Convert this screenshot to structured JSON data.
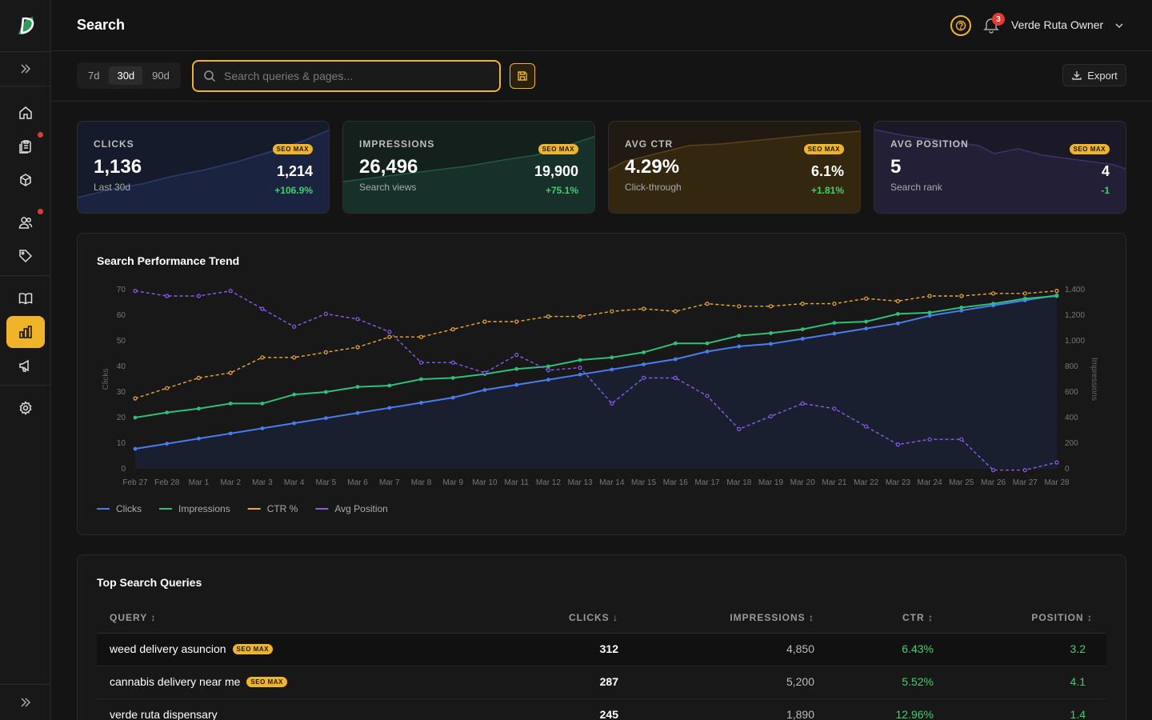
{
  "header": {
    "title": "Search",
    "notification_count": "3",
    "user_name": "Verde Ruta Owner"
  },
  "toolbar": {
    "ranges": [
      "7d",
      "30d",
      "90d"
    ],
    "selected_range": "30d",
    "search_placeholder": "Search queries & pages...",
    "export_label": "Export"
  },
  "cards": [
    {
      "label": "CLICKS",
      "value": "1,136",
      "sub": "Last 30d",
      "pill": "SEO MAX",
      "max": "1,214",
      "change": "+106.9%",
      "color": "#3b6fe0"
    },
    {
      "label": "IMPRESSIONS",
      "value": "26,496",
      "sub": "Search views",
      "pill": "SEO MAX",
      "max": "19,900",
      "change": "+75.1%",
      "color": "#27a06a"
    },
    {
      "label": "AVG CTR",
      "value": "4.29%",
      "sub": "Click-through",
      "pill": "SEO MAX",
      "max": "6.1%",
      "change": "+1.81%",
      "color": "#b7801d"
    },
    {
      "label": "AVG POSITION",
      "value": "5",
      "sub": "Search rank",
      "pill": "SEO MAX",
      "max": "4",
      "change": "-1",
      "color": "#5b4aa0"
    }
  ],
  "chart": {
    "title": "Search Performance Trend"
  },
  "chart_data": {
    "type": "line",
    "title": "Search Performance Trend",
    "ylabel": "Clicks",
    "y2label": "Impressions",
    "ylim": [
      0,
      70
    ],
    "y2lim": [
      0,
      1400
    ],
    "yticks": [
      "0",
      "10",
      "20",
      "30",
      "40",
      "50",
      "60",
      "70"
    ],
    "y2ticks": [
      "0",
      "200",
      "400",
      "600",
      "800",
      "1,000",
      "1,200",
      "1,400"
    ],
    "x": [
      "Feb 27",
      "Feb 28",
      "Mar 1",
      "Mar 2",
      "Mar 3",
      "Mar 4",
      "Mar 5",
      "Mar 6",
      "Mar 7",
      "Mar 8",
      "Mar 9",
      "Mar 10",
      "Mar 11",
      "Mar 12",
      "Mar 13",
      "Mar 14",
      "Mar 15",
      "Mar 16",
      "Mar 17",
      "Mar 18",
      "Mar 19",
      "Mar 20",
      "Mar 21",
      "Mar 22",
      "Mar 23",
      "Mar 24",
      "Mar 25",
      "Mar 26",
      "Mar 27",
      "Mar 28"
    ],
    "grid": false,
    "legend": "bottom-left",
    "series": [
      {
        "name": "Clicks",
        "color": "#4a7cf0",
        "style": "solid",
        "axis": "left",
        "area": true,
        "values": [
          7.8,
          9.8,
          11.8,
          13.8,
          15.8,
          17.8,
          19.8,
          21.8,
          23.8,
          25.8,
          27.8,
          30.8,
          32.8,
          34.8,
          36.8,
          38.8,
          40.8,
          42.8,
          45.8,
          47.8,
          48.8,
          50.8,
          52.8,
          54.8,
          56.8,
          59.8,
          61.8,
          63.8,
          65.8,
          67.8
        ]
      },
      {
        "name": "Impressions",
        "color": "#2fbf7a",
        "style": "solid",
        "axis": "right",
        "values": [
          400,
          440,
          470,
          510,
          510,
          580,
          600,
          640,
          650,
          700,
          710,
          740,
          780,
          800,
          850,
          870,
          910,
          980,
          980,
          1040,
          1060,
          1090,
          1140,
          1150,
          1210,
          1220,
          1260,
          1290,
          1330,
          1350
        ]
      },
      {
        "name": "CTR %",
        "color": "#f0a830",
        "style": "dashed",
        "axis": "left",
        "values": [
          27.5,
          31.5,
          35.5,
          37.5,
          43.5,
          43.5,
          45.5,
          47.5,
          51.5,
          51.5,
          54.5,
          57.5,
          57.5,
          59.5,
          59.5,
          61.5,
          62.5,
          61.5,
          64.5,
          63.5,
          63.5,
          64.5,
          64.5,
          66.5,
          65.5,
          67.5,
          67.5,
          68.5,
          68.5,
          69.5
        ]
      },
      {
        "name": "Avg Position",
        "color": "#8a5cf0",
        "style": "dashed",
        "axis": "left",
        "values": [
          69.5,
          67.5,
          67.5,
          69.5,
          62.5,
          55.5,
          60.5,
          58.5,
          53.5,
          41.5,
          41.5,
          37.5,
          44.5,
          38.5,
          39.5,
          25.5,
          35.5,
          35.5,
          28.5,
          15.5,
          20.5,
          25.5,
          23.5,
          16.5,
          9.5,
          11.5,
          11.5,
          -0.5,
          -0.5,
          2.5
        ]
      }
    ]
  },
  "table": {
    "title": "Top Search Queries",
    "columns": [
      "QUERY ↕",
      "CLICKS ↓",
      "IMPRESSIONS ↕",
      "CTR ↕",
      "POSITION ↕"
    ],
    "rows": [
      {
        "query": "weed delivery asuncion",
        "badge": "SEO MAX",
        "clicks": "312",
        "impressions": "4,850",
        "ctr": "6.43%",
        "position": "3.2"
      },
      {
        "query": "cannabis delivery near me",
        "badge": "SEO MAX",
        "clicks": "287",
        "impressions": "5,200",
        "ctr": "5.52%",
        "position": "4.1"
      },
      {
        "query": "verde ruta dispensary",
        "badge": "",
        "clicks": "245",
        "impressions": "1,890",
        "ctr": "12.96%",
        "position": "1.4"
      }
    ]
  }
}
